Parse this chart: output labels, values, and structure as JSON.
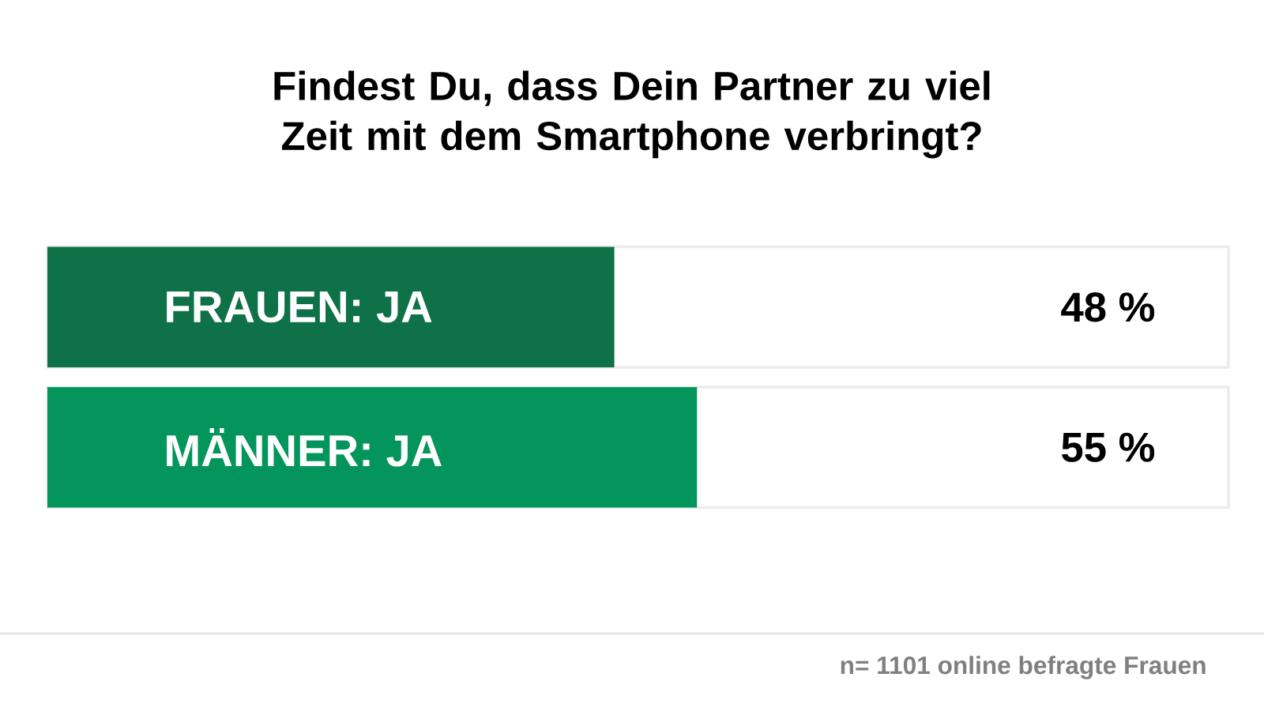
{
  "chart_data": {
    "type": "bar",
    "orientation": "horizontal",
    "title": "Findest Du, dass Dein Partner zu viel Zeit mit dem Smartphone verbringt?",
    "categories": [
      "FRAUEN: JA",
      "MÄNNER: JA"
    ],
    "values": [
      48,
      55
    ],
    "colors": [
      "#0e7148",
      "#03955c"
    ],
    "value_labels": [
      "48 %",
      "55 %"
    ],
    "xlim": [
      0,
      100
    ],
    "annotations": [
      "n= 1101 online befragte Frauen"
    ]
  }
}
